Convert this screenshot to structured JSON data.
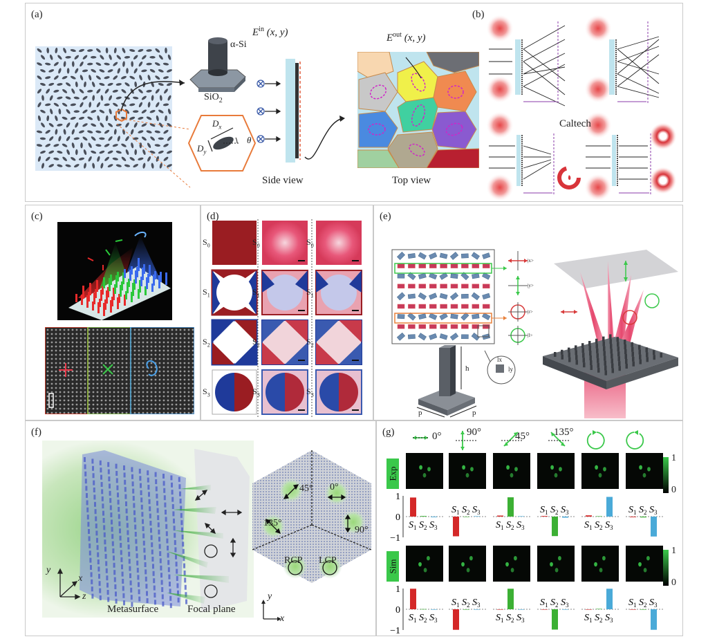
{
  "panels": {
    "a": {
      "label": "(a)",
      "material_top": "α-Si",
      "material_bottom": "SiO",
      "material_bottom_sub": "2",
      "dx": "D",
      "dx_sub": "x",
      "dy": "D",
      "dy_sub": "y",
      "theta": "θ",
      "ein": "E",
      "ein_sup": "in",
      "ein_args": " (x, y)",
      "eout": "E",
      "eout_sup": "out",
      "eout_args": " (x, y)",
      "side_view": "Side view",
      "top_view": "Top view"
    },
    "b": {
      "label": "(b)",
      "caltech": "Caltech"
    },
    "c": {
      "label": "(c)"
    },
    "d": {
      "label": "(d)",
      "rows": [
        "S",
        "S",
        "S",
        "S"
      ],
      "row_subs": [
        "0",
        "1",
        "2",
        "3"
      ]
    },
    "e": {
      "label": "(e)",
      "states": [
        "|x>",
        "|y>",
        "|r>",
        "|l>"
      ],
      "h": "h",
      "p1": "p",
      "p2": "p",
      "lx": "lx",
      "ly": "ly"
    },
    "f": {
      "label": "(f)",
      "angles": [
        "45°",
        "0°",
        "135°",
        "90°"
      ],
      "rcp": "RCP",
      "lcp": "LCP",
      "ax_x": "x",
      "ax_y": "y",
      "ax_z": "z",
      "ax2_x": "x",
      "ax2_y": "y",
      "metasurface": "Metasurface",
      "focal_plane": "Focal plane"
    },
    "g": {
      "label": "(g)",
      "angles": [
        "0°",
        "90°",
        "45°",
        "135°"
      ],
      "exp": "Exp",
      "sim": "Sim",
      "scale_top": "1",
      "scale_bottom": "0",
      "tick_1": "1",
      "tick_0": "0",
      "tick_m1": "−1",
      "s1": "S",
      "s2": "S",
      "s3": "S",
      "sub1": "1",
      "sub2": "2",
      "sub3": "3"
    }
  },
  "chart_data": {
    "type": "bar",
    "categories": [
      "S1",
      "S2",
      "S3"
    ],
    "series": [
      {
        "group": "Exp",
        "pol": "0°",
        "values": [
          0.92,
          0.03,
          -0.03
        ]
      },
      {
        "group": "Exp",
        "pol": "90°",
        "values": [
          -0.95,
          -0.02,
          0.02
        ]
      },
      {
        "group": "Exp",
        "pol": "45°",
        "values": [
          0.05,
          0.93,
          0.02
        ]
      },
      {
        "group": "Exp",
        "pol": "135°",
        "values": [
          0.03,
          -0.94,
          -0.05
        ]
      },
      {
        "group": "Exp",
        "pol": "RCP",
        "values": [
          0.06,
          0.02,
          0.95
        ]
      },
      {
        "group": "Exp",
        "pol": "LCP",
        "values": [
          -0.03,
          -0.04,
          -0.96
        ]
      },
      {
        "group": "Sim",
        "pol": "0°",
        "values": [
          0.99,
          0.01,
          0.0
        ]
      },
      {
        "group": "Sim",
        "pol": "90°",
        "values": [
          -0.99,
          0.0,
          0.0
        ]
      },
      {
        "group": "Sim",
        "pol": "45°",
        "values": [
          0.0,
          0.99,
          0.0
        ]
      },
      {
        "group": "Sim",
        "pol": "135°",
        "values": [
          -0.02,
          -0.98,
          0.0
        ]
      },
      {
        "group": "Sim",
        "pol": "RCP",
        "values": [
          0.0,
          0.02,
          0.99
        ]
      },
      {
        "group": "Sim",
        "pol": "LCP",
        "values": [
          0.0,
          0.0,
          -0.99
        ]
      }
    ],
    "ylim": [
      -1,
      1
    ],
    "colors": {
      "S1": "#d42828",
      "S2": "#3cb034",
      "S3": "#4aaad8"
    }
  }
}
